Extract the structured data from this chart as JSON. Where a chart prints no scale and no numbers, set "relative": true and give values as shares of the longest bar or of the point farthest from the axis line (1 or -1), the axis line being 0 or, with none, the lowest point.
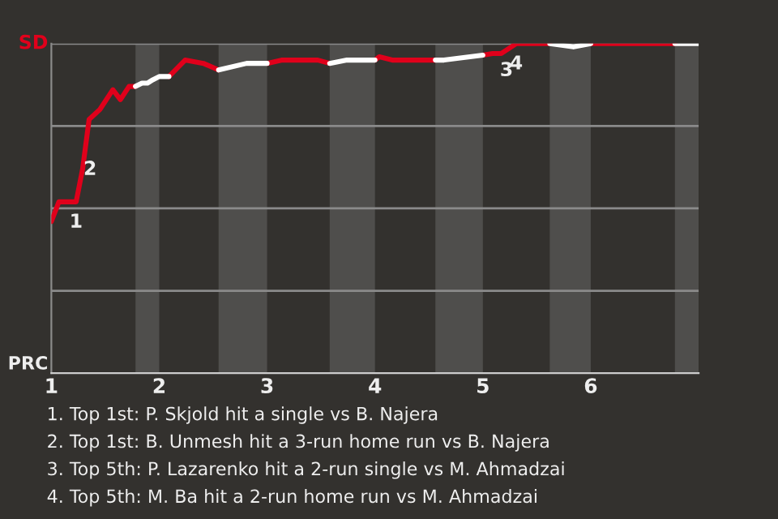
{
  "chart_data": {
    "type": "line",
    "relative": true,
    "grid": "y",
    "line_style": "solid",
    "marker": "none",
    "xlim": [
      1,
      7
    ],
    "xticks": [
      1,
      2,
      3,
      4,
      5,
      6
    ],
    "series": [
      {
        "color": "#e0001b",
        "x": [
          1.0,
          1.07,
          1.23,
          1.29,
          1.35,
          1.45,
          1.57,
          1.64,
          1.72,
          1.78,
          1.9,
          2.09,
          2.24,
          2.41,
          2.55,
          2.8,
          3.0,
          3.14,
          3.47,
          3.58,
          3.8,
          4.0,
          4.04,
          4.16,
          4.56,
          4.8,
          5.0,
          5.09,
          5.17,
          5.31,
          5.62,
          5.8,
          6.0,
          6.78
        ],
        "values": [
          0.46,
          0.52,
          0.52,
          0.62,
          0.77,
          0.8,
          0.86,
          0.83,
          0.87,
          0.87,
          null,
          0.9,
          0.95,
          0.94,
          0.92,
          null,
          0.94,
          0.95,
          0.95,
          0.94,
          null,
          0.95,
          0.96,
          0.95,
          0.95,
          null,
          0.965,
          0.97,
          0.97,
          1.0,
          1.0,
          null,
          1.0,
          1.0
        ]
      },
      {
        "color": "#ffffff",
        "x": [
          1.78,
          1.84,
          1.89,
          1.94,
          2.0,
          2.09,
          2.3,
          2.55,
          2.81,
          3.0,
          3.3,
          3.58,
          3.74,
          4.0,
          4.3,
          4.56,
          4.64,
          5.0,
          5.3,
          5.62,
          5.84,
          6.0,
          6.4,
          6.78,
          7.0
        ],
        "values": [
          0.87,
          0.88,
          0.88,
          0.89,
          0.9,
          0.9,
          null,
          0.92,
          0.94,
          0.94,
          null,
          0.94,
          0.95,
          0.95,
          null,
          0.95,
          0.95,
          0.965,
          null,
          1.0,
          0.99,
          1.0,
          null,
          1.0,
          1.0
        ]
      }
    ],
    "bands": [
      {
        "axis": "x",
        "from": 1.78,
        "to": 2.0,
        "color": "#4f4e4c"
      },
      {
        "axis": "x",
        "from": 2.55,
        "to": 3.0,
        "color": "#4f4e4c"
      },
      {
        "axis": "x",
        "from": 3.58,
        "to": 4.0,
        "color": "#4f4e4c"
      },
      {
        "axis": "x",
        "from": 4.56,
        "to": 5.0,
        "color": "#4f4e4c"
      },
      {
        "axis": "x",
        "from": 5.62,
        "to": 6.0,
        "color": "#4f4e4c"
      },
      {
        "axis": "x",
        "from": 6.78,
        "to": 7.0,
        "color": "#4f4e4c"
      }
    ],
    "annotations": [
      "SD",
      "PRC",
      {
        "text": "1",
        "x": 1.23,
        "y": 0.52
      },
      {
        "text": "2",
        "x": 1.36,
        "y": 0.68
      },
      {
        "text": "3",
        "x": 5.22,
        "y": 0.98
      },
      {
        "text": "4",
        "x": 5.31,
        "y": 1.0
      },
      "1. Top 1st: P. Skjold hit a single vs B. Najera",
      "2. Top 1st: B. Unmesh hit a 3-run home run vs B. Najera",
      "3. Top 5th: P. Lazarenko hit a 2-run single vs M. Ahmadzai",
      "4. Top 5th: M. Ba hit a 2-run home run vs M. Ahmadzai"
    ]
  }
}
